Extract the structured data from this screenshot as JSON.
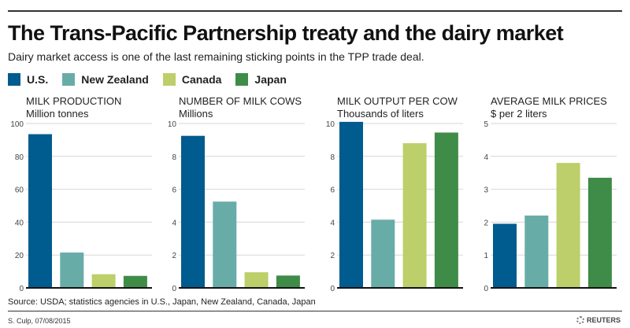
{
  "title": "The Trans-Pacific Partnership treaty and the dairy market",
  "subtitle": "Dairy market access is one of the last remaining sticking points in the TPP trade deal.",
  "legend": [
    {
      "label": "U.S.",
      "color": "#005b8e"
    },
    {
      "label": "New Zealand",
      "color": "#68aca8"
    },
    {
      "label": "Canada",
      "color": "#bccf6a"
    },
    {
      "label": "Japan",
      "color": "#3f8c48"
    }
  ],
  "chart_data": [
    {
      "type": "bar",
      "title": "MILK PRODUCTION",
      "subtitle": "Million tonnes",
      "categories": [
        "U.S.",
        "New Zealand",
        "Canada",
        "Japan"
      ],
      "values": [
        93.5,
        21.5,
        8.3,
        7.3
      ],
      "ylim": [
        0,
        100
      ],
      "yticks": [
        0,
        20,
        40,
        60,
        80,
        100
      ],
      "grid": true
    },
    {
      "type": "bar",
      "title": "NUMBER OF MILK COWS",
      "subtitle": "Millions",
      "categories": [
        "U.S.",
        "New Zealand",
        "Canada",
        "Japan"
      ],
      "values": [
        9.25,
        5.25,
        0.95,
        0.75
      ],
      "ylim": [
        0,
        10
      ],
      "yticks": [
        0,
        2,
        4,
        6,
        8,
        10
      ],
      "grid": true
    },
    {
      "type": "bar",
      "title": "MILK OUTPUT PER COW",
      "subtitle": "Thousands of liters",
      "categories": [
        "U.S.",
        "New Zealand",
        "Canada",
        "Japan"
      ],
      "values": [
        10.1,
        4.15,
        8.8,
        9.45
      ],
      "ylim": [
        0,
        10
      ],
      "yticks": [
        0,
        2,
        4,
        6,
        8,
        10
      ],
      "grid": true
    },
    {
      "type": "bar",
      "title": "AVERAGE MILK PRICES",
      "subtitle": "$ per 2 liters",
      "categories": [
        "U.S.",
        "New Zealand",
        "Canada",
        "Japan"
      ],
      "values": [
        1.95,
        2.2,
        3.8,
        3.35
      ],
      "ylim": [
        0,
        5
      ],
      "yticks": [
        0,
        1,
        2,
        3,
        4,
        5
      ],
      "grid": true
    }
  ],
  "source": "Source: USDA; statistics agencies in U.S., Japan, New Zealand, Canada, Japan",
  "credit": "S. Culp, 07/08/2015",
  "logo": "REUTERS"
}
